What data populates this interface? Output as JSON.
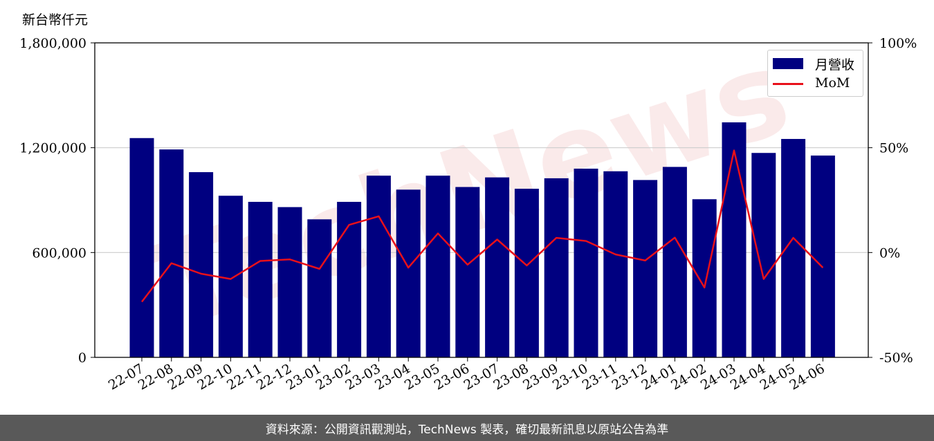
{
  "chart_data": {
    "type": "bar",
    "unit_label": "新台幣仟元",
    "categories": [
      "22-07",
      "22-08",
      "22-09",
      "22-10",
      "22-11",
      "22-12",
      "23-01",
      "23-02",
      "23-03",
      "23-04",
      "23-05",
      "23-06",
      "23-07",
      "23-08",
      "23-09",
      "23-10",
      "23-11",
      "23-12",
      "24-01",
      "24-02",
      "24-03",
      "24-04",
      "24-05",
      "24-06"
    ],
    "series": [
      {
        "name": "月營收",
        "kind": "bar",
        "axis": "left",
        "color": "#000080",
        "values": [
          1255000,
          1190000,
          1060000,
          925000,
          890000,
          860000,
          790000,
          890000,
          1040000,
          960000,
          1040000,
          975000,
          1030000,
          965000,
          1025000,
          1080000,
          1065000,
          1015000,
          1090000,
          905000,
          1345000,
          1170000,
          1250000,
          1155000
        ]
      },
      {
        "name": "MoM",
        "kind": "line",
        "axis": "right",
        "color": "#e8101a",
        "values": [
          -23.5,
          -5.1,
          -10.1,
          -12.6,
          -4.0,
          -3.3,
          -7.8,
          13.2,
          17.3,
          -7.2,
          9.1,
          -5.8,
          6.2,
          -6.2,
          7.0,
          5.5,
          -0.9,
          -3.8,
          7.1,
          -16.7,
          48.7,
          -12.6,
          7.0,
          -7.2
        ]
      }
    ],
    "left_axis": {
      "ylim": [
        0,
        1800000
      ],
      "ticks": [
        "0",
        "600,000",
        "1,200,000",
        "1,800,000"
      ],
      "tick_values": [
        0,
        600000,
        1200000,
        1800000
      ]
    },
    "right_axis": {
      "ylim": [
        -50,
        100
      ],
      "ticks": [
        "-50%",
        "0%",
        "50%",
        "100%"
      ],
      "tick_values": [
        -50,
        0,
        50,
        100
      ]
    },
    "grid": "horizontal",
    "legend_position": "top-right",
    "watermark": "TechNews"
  },
  "footer": {
    "text": "資料來源：公開資訊觀測站，TechNews 製表，確切最新訊息以原站公告為準"
  },
  "colors": {
    "bar": "#000080",
    "line": "#e8101a",
    "footer_bg": "#595959",
    "grid": "#cccccc"
  }
}
